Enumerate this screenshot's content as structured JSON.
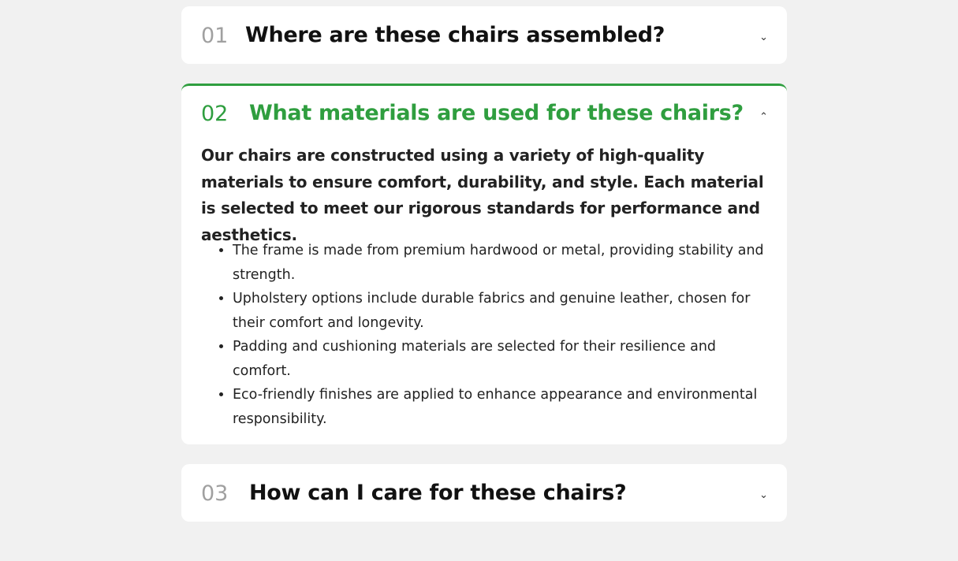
{
  "faq": {
    "items": [
      {
        "number": "01",
        "question": "Where are these chairs assembled?",
        "chevron": "chevron-down-icon",
        "open": false
      },
      {
        "number": "02",
        "question": "What materials are used for these chairs?",
        "chevron": "chevron-up-icon",
        "open": true,
        "answer_intro": "Our chairs are constructed using a variety of high-quality materials to ensure comfort, durability, and style. Each material is selected to meet our rigorous standards for performance and aesthetics.",
        "answer_points": [
          "The frame is made from premium hardwood or metal, providing stability and strength.",
          "Upholstery options include durable fabrics and genuine leather, chosen for their comfort and longevity.",
          "Padding and cushioning materials are selected for their resilience and comfort.",
          "Eco-friendly finishes are applied to enhance appearance and environmental responsibility."
        ]
      },
      {
        "number": "03",
        "question": "How can I care for these chairs?",
        "chevron": "chevron-down-icon",
        "open": false
      }
    ],
    "icons": {
      "down": "⌄",
      "up": "⌃"
    },
    "colors": {
      "accent": "#2f9e3f",
      "number_muted": "#a0a0a0",
      "background": "#f1f1f1",
      "card": "#ffffff"
    }
  }
}
